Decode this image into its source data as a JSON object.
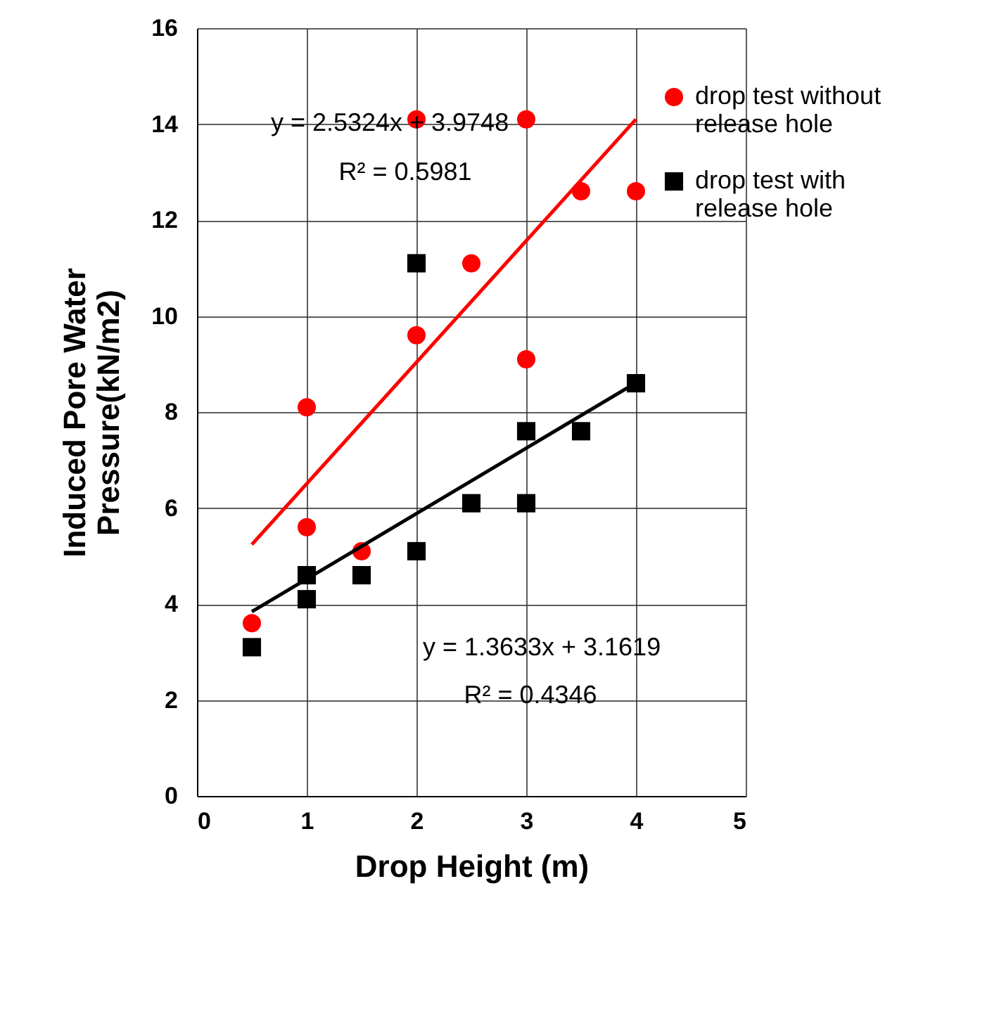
{
  "chart_data": {
    "type": "scatter",
    "xlabel": "Drop Height (m)",
    "ylabel": "Induced Pore Water Pressure(kN/m2)",
    "xlim": [
      0,
      5
    ],
    "xticks": [
      0,
      1,
      2,
      3,
      4,
      5
    ],
    "ylim": [
      0,
      16
    ],
    "yticks": [
      0,
      2,
      4,
      6,
      8,
      10,
      12,
      14,
      16
    ],
    "grid": true,
    "legend": "top right",
    "series": [
      {
        "name": "drop test without release hole",
        "type": "scatter",
        "marker": "circle",
        "color": "#ff0000",
        "x": [
          0.5,
          1,
          1,
          1.5,
          2,
          2,
          2.5,
          3,
          3,
          3.5,
          4
        ],
        "values": [
          3.6,
          8.1,
          5.6,
          5.1,
          14.1,
          9.6,
          11.1,
          14.1,
          9.1,
          12.6,
          12.6
        ]
      },
      {
        "name": "drop test with release hole",
        "type": "scatter",
        "marker": "square",
        "color": "#000000",
        "x": [
          0.5,
          1,
          1,
          1.5,
          2,
          2,
          2.5,
          3,
          3,
          3.5,
          4
        ],
        "values": [
          3.1,
          4.6,
          4.1,
          4.6,
          11.1,
          5.1,
          6.1,
          7.6,
          6.1,
          7.6,
          8.6
        ]
      },
      {
        "type": "line",
        "color": "#ff0000",
        "x": [
          0.5,
          4
        ],
        "values": [
          5.24,
          14.1
        ]
      },
      {
        "type": "line",
        "color": "#000000",
        "x": [
          0.5,
          4
        ],
        "values": [
          3.84,
          8.61
        ]
      }
    ],
    "annotations": [
      "y = 2.5324x + 3.9748",
      "R² = 0.5981",
      "y = 1.3633x + 3.1619",
      "R² = 0.4346"
    ]
  }
}
